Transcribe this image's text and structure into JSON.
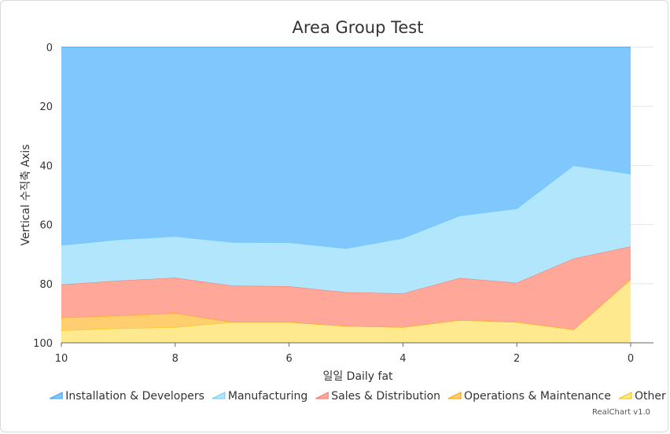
{
  "chart_data": {
    "type": "area",
    "stacked": true,
    "title": "Area Group Test",
    "xlabel": "일일 Daily fat",
    "ylabel": "Vertical 수직축 Axis",
    "x": [
      10,
      9,
      8,
      7,
      6,
      5,
      4,
      3,
      2,
      1,
      0
    ],
    "xlim": [
      10,
      0
    ],
    "xticks": [
      10,
      8,
      6,
      4,
      2,
      0
    ],
    "ylim": [
      0,
      100
    ],
    "yticks": [
      0,
      20,
      40,
      60,
      80,
      100
    ],
    "y_reversed": true,
    "grid": true,
    "legend_position": "bottom",
    "series": [
      {
        "name": "Other",
        "color": "#FFE98F",
        "stroke": "#F6C100",
        "values": [
          4.2,
          4.9,
          5.3,
          7,
          7,
          5.7,
          5.3,
          7.7,
          7,
          4.5,
          21.5
        ]
      },
      {
        "name": "Operations & Maintenance",
        "color": "#FFCF6F",
        "stroke": "#FF9D00",
        "values": [
          4.3,
          4.3,
          4.7,
          0,
          0,
          0,
          0,
          0,
          0,
          0,
          0
        ]
      },
      {
        "name": "Sales & Distribution",
        "color": "#FFA89A",
        "stroke": "#F2766A",
        "values": [
          11.2,
          11.8,
          12,
          12.3,
          12.1,
          11.4,
          11.4,
          14.2,
          13.3,
          24,
          11.1
        ]
      },
      {
        "name": "Manufacturing",
        "color": "#B1E6FD",
        "stroke": "#6ACBF5",
        "values": [
          13.3,
          13.9,
          14,
          14.7,
          14.8,
          14.8,
          18.7,
          21.1,
          25.1,
          31.5,
          24.5
        ]
      },
      {
        "name": "Installation & Developers",
        "color": "#7FC7FD",
        "stroke": "#3CA2EA",
        "values": [
          67,
          65.1,
          64,
          66,
          66.1,
          68.1,
          64.6,
          57,
          54.6,
          40,
          42.9
        ]
      }
    ],
    "legend_order": [
      "Installation & Developers",
      "Manufacturing",
      "Sales & Distribution",
      "Operations & Maintenance",
      "Other"
    ]
  },
  "credit": "RealChart v1.0"
}
